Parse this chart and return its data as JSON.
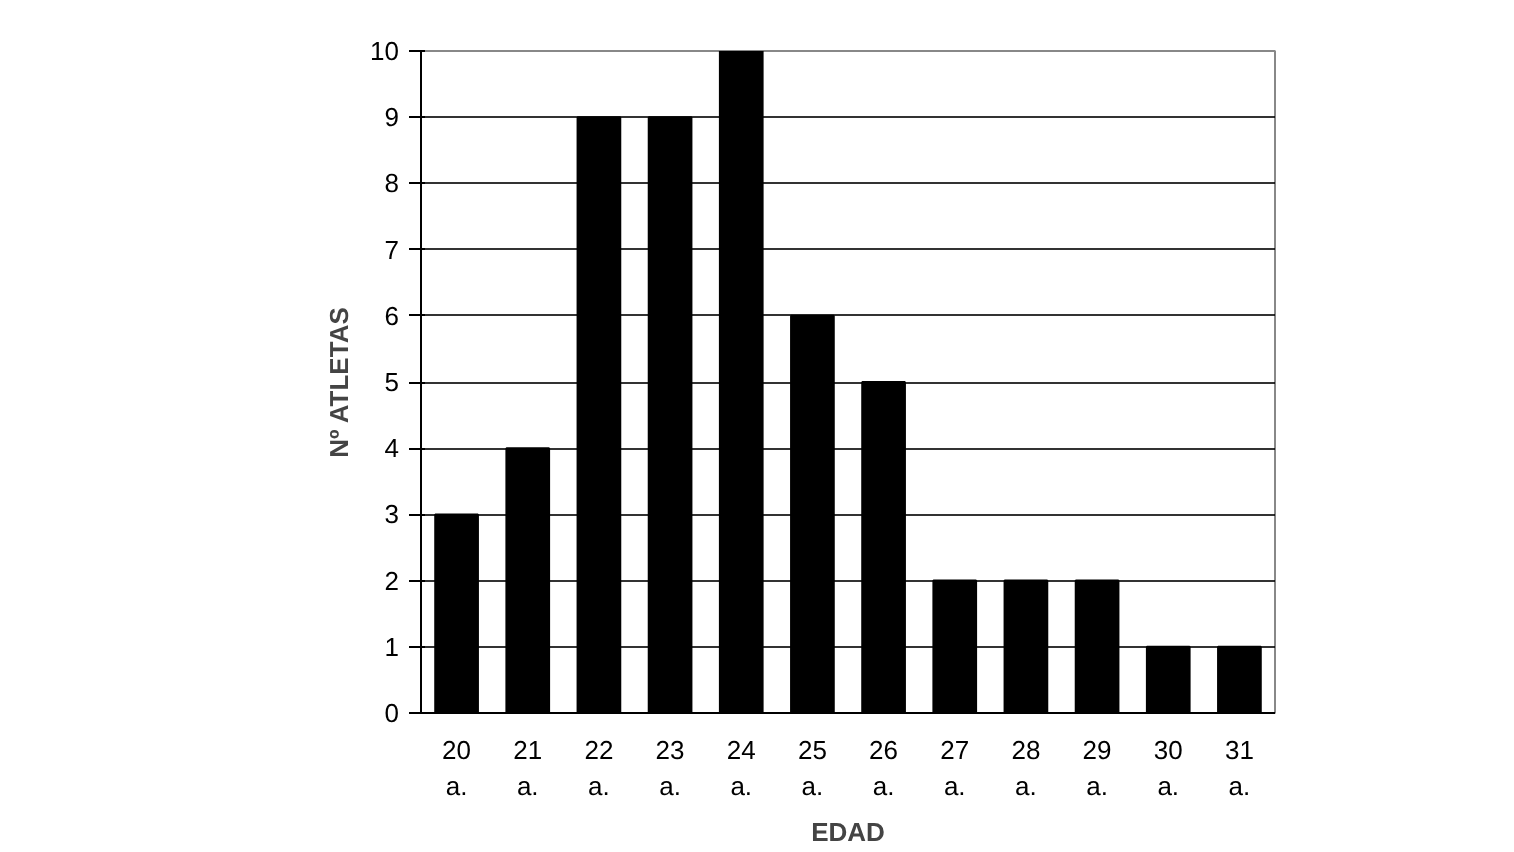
{
  "chart_data": {
    "type": "bar",
    "xlabel": "EDAD",
    "ylabel": "Nº ATLETAS",
    "categories": [
      "20 a.",
      "21 a.",
      "22 a.",
      "23 a.",
      "24 a.",
      "25 a.",
      "26 a.",
      "27 a.",
      "28 a.",
      "29 a.",
      "30 a.",
      "31 a."
    ],
    "values": [
      3,
      4,
      9,
      9,
      10,
      6,
      5,
      2,
      2,
      2,
      1,
      1
    ],
    "color": "#000000",
    "ylim": [
      0,
      10
    ],
    "yticks": [
      0,
      1,
      2,
      3,
      4,
      5,
      6,
      7,
      8,
      9,
      10
    ],
    "grid": "y"
  }
}
